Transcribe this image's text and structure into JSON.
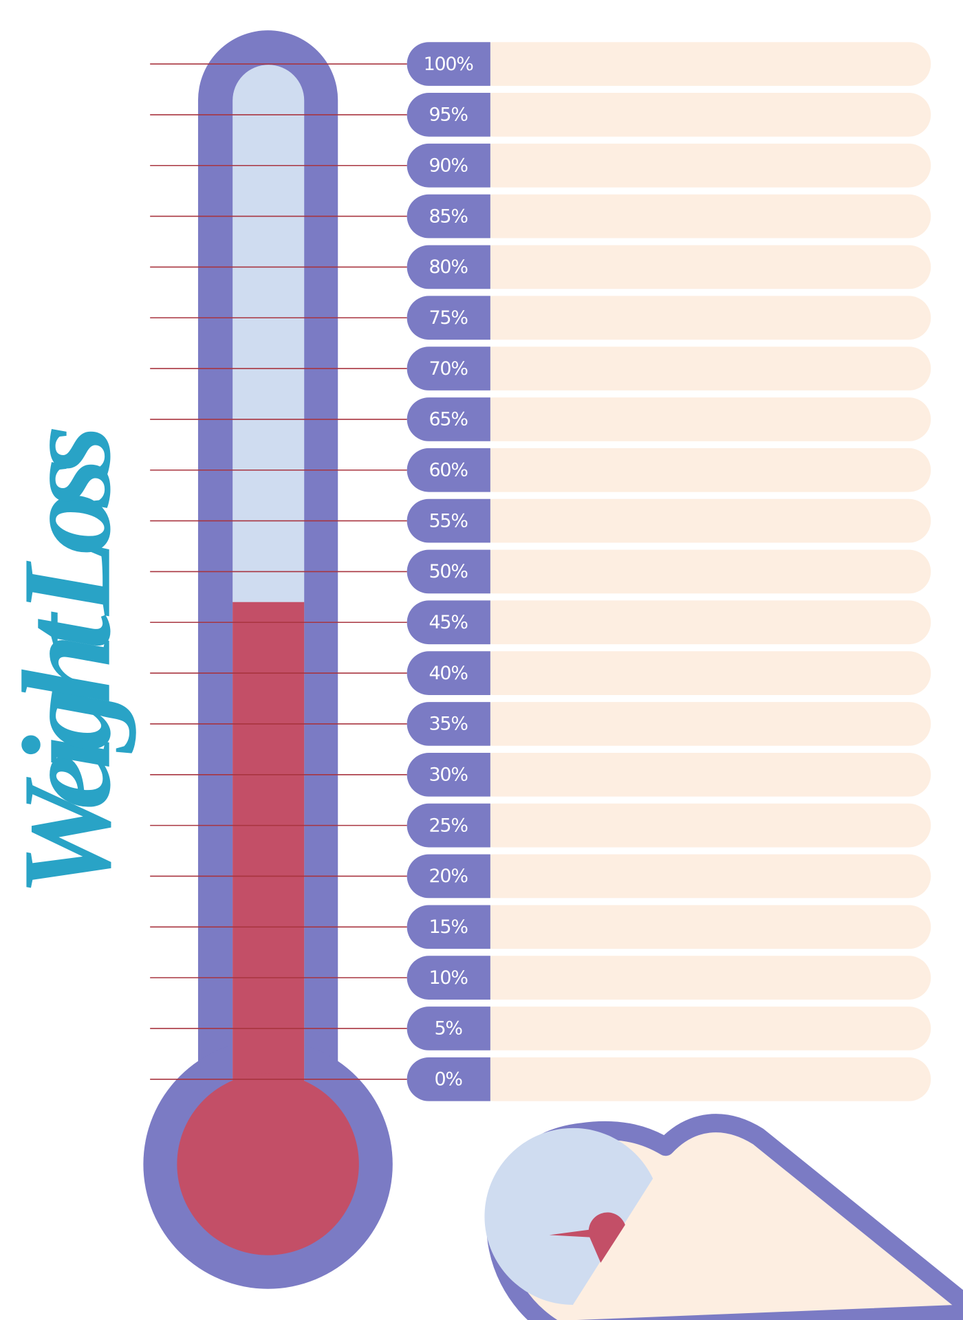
{
  "title": "Weight Loss",
  "levels": [
    "100%",
    "95%",
    "90%",
    "85%",
    "80%",
    "75%",
    "70%",
    "65%",
    "60%",
    "55%",
    "50%",
    "45%",
    "40%",
    "35%",
    "30%",
    "25%",
    "20%",
    "15%",
    "10%",
    "5%",
    "0%"
  ],
  "thermometer": {
    "fill": 47
  }
}
